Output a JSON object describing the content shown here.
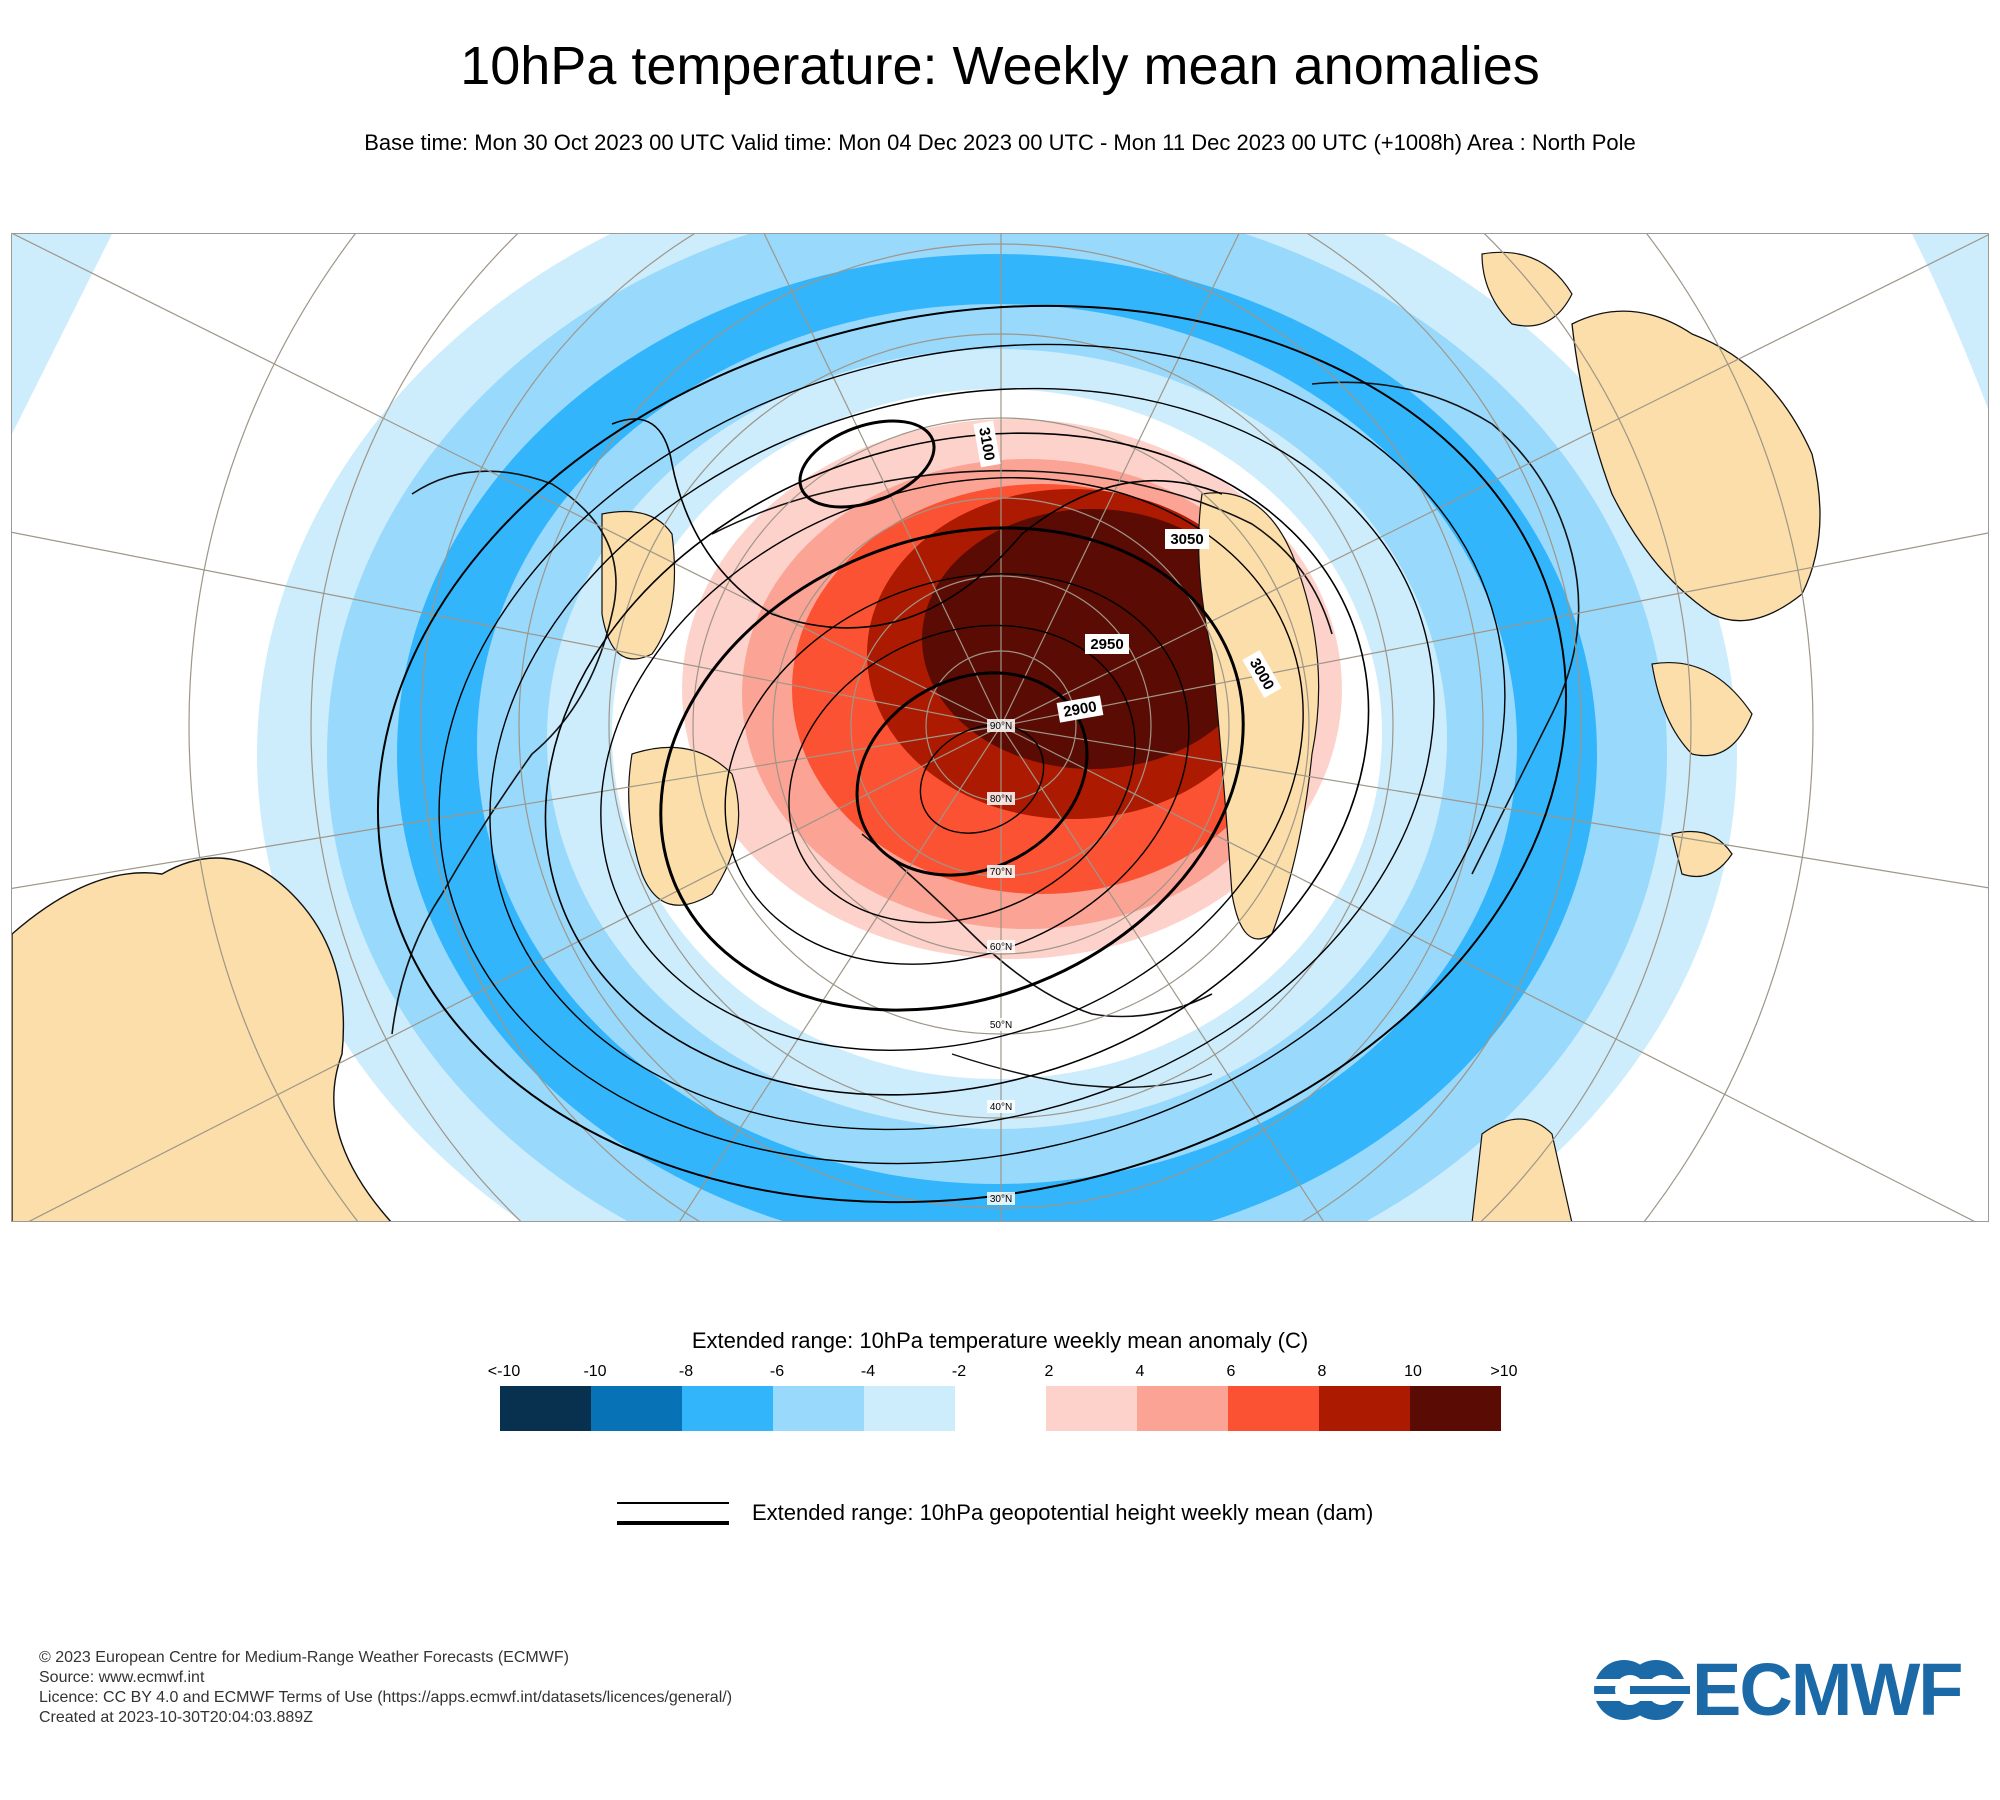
{
  "header": {
    "title": "10hPa temperature: Weekly mean anomalies",
    "subtitle": "Base time: Mon 30 Oct 2023 00 UTC Valid time: Mon 04 Dec 2023 00 UTC - Mon 11 Dec 2023 00 UTC (+1008h) Area : North Pole"
  },
  "map": {
    "projection": "Polar stereographic, North Pole",
    "latitude_labels": [
      "90°N",
      "80°N",
      "70°N",
      "60°N",
      "50°N",
      "40°N",
      "30°N"
    ],
    "contour_labels": [
      "3100",
      "3050",
      "2950",
      "2900",
      "3000"
    ],
    "colors": {
      "land": "#fbdeaa",
      "coast": "#111111",
      "grid": "#9e9688"
    }
  },
  "legend": {
    "title": "Extended range: 10hPa temperature weekly mean anomaly (C)",
    "ticks": [
      "<-10",
      "-10",
      "-8",
      "-6",
      "-4",
      "-2",
      "2",
      "4",
      "6",
      "8",
      "10",
      ">10"
    ],
    "bins": [
      {
        "range": "<-10 to -10",
        "color": "#08304f"
      },
      {
        "range": "-10 to -8",
        "color": "#0872b6"
      },
      {
        "range": "-8 to -6",
        "color": "#33b5fb"
      },
      {
        "range": "-6 to -4",
        "color": "#99d9fc"
      },
      {
        "range": "-4 to -2",
        "color": "#cdedfd"
      },
      {
        "range": "-2 to 2",
        "color": "#ffffff"
      },
      {
        "range": "2 to 4",
        "color": "#fdd2cb"
      },
      {
        "range": "4 to 6",
        "color": "#fba394"
      },
      {
        "range": "6 to 8",
        "color": "#fb5233"
      },
      {
        "range": "8 to 10",
        "color": "#ac1a02"
      },
      {
        "range": ">10",
        "color": "#5a0b03"
      }
    ]
  },
  "contour_key": {
    "label": "Extended range: 10hPa geopotential height weekly mean (dam)"
  },
  "footer": {
    "line1": "© 2023 European Centre for Medium-Range Weather Forecasts (ECMWF)",
    "line2": "Source: www.ecmwf.int",
    "line3": "Licence: CC BY 4.0 and ECMWF Terms of Use (https://apps.ecmwf.int/datasets/licences/general/)",
    "line4": "Created at 2023-10-30T20:04:03.889Z"
  },
  "logo": {
    "text": "ECMWF",
    "color": "#1b6aa7"
  }
}
